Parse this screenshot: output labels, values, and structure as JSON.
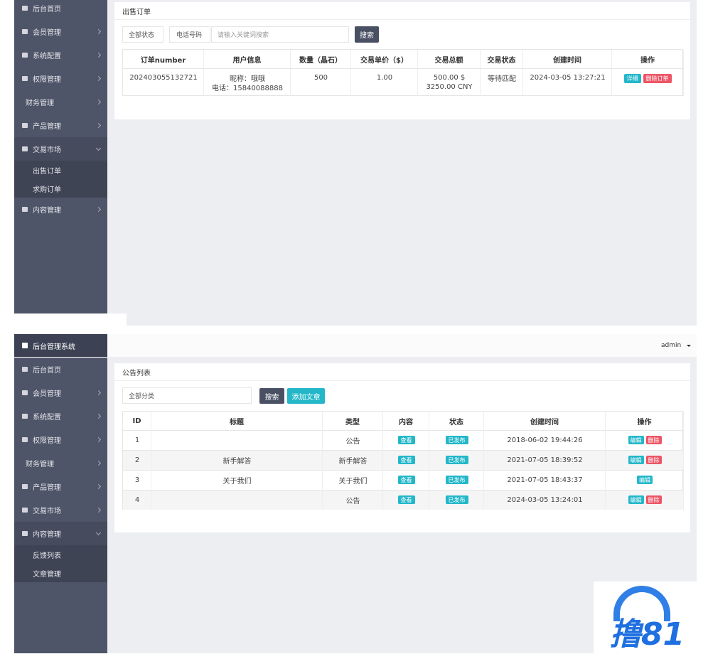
{
  "order_screen": {
    "sidebar": [
      {
        "label": "后台首页"
      },
      {
        "label": "会员管理"
      },
      {
        "label": "系统配置"
      },
      {
        "label": "权限管理"
      },
      {
        "label": "财务管理"
      },
      {
        "label": "产品管理"
      },
      {
        "label": "交易市场",
        "children": [
          "出售订单",
          "求购订单"
        ]
      },
      {
        "label": "内容管理"
      }
    ],
    "panel_title": "出售订单",
    "filters": {
      "status_select": "全部状态",
      "field_select": "电话号码",
      "keyword_placeholder": "请输入关键词搜索",
      "search_button": "搜索"
    },
    "table": {
      "headers": [
        "订单number",
        "用户信息",
        "数量（晶石）",
        "交易单价（$）",
        "交易总额",
        "交易状态",
        "创建时间",
        "操作"
      ],
      "rows": [
        [
          "202403055132721",
          [
            "昵称：哦哦",
            "电话：15840088888"
          ],
          "500",
          "1.00",
          [
            "500.00 $",
            "3250.00 CNY"
          ],
          "等待匹配",
          "2024-03-05 13:27:21",
          [
            "详细",
            "删除订单"
          ]
        ]
      ]
    }
  },
  "article_screen": {
    "brand": "后台管理系统",
    "user": "admin",
    "sidebar": [
      {
        "label": "后台首页"
      },
      {
        "label": "会员管理"
      },
      {
        "label": "系统配置"
      },
      {
        "label": "权限管理"
      },
      {
        "label": "财务管理"
      },
      {
        "label": "产品管理"
      },
      {
        "label": "交易市场"
      },
      {
        "label": "内容管理",
        "children": [
          "反馈列表",
          "文章管理"
        ]
      }
    ],
    "panel_title": "公告列表",
    "filters": {
      "category_select": "全部分类",
      "search_button": "搜索",
      "add_button": "添加文章"
    },
    "table": {
      "headers": [
        "ID",
        "标题",
        "类型",
        "内容",
        "状态",
        "创建时间",
        "操作"
      ],
      "rows": [
        {
          "id": "1",
          "type": "公告",
          "content": "查看",
          "status": "已发布",
          "created": "2018-06-02 19:44:26",
          "actions": [
            "编辑",
            "删除"
          ]
        },
        {
          "id": "2",
          "title": "新手解答",
          "type": "新手解答",
          "content": "查看",
          "status": "已发布",
          "created": "2021-07-05 18:39:52",
          "actions": [
            "编辑",
            "删除"
          ]
        },
        {
          "id": "3",
          "title": "关于我们",
          "type": "关于我们",
          "content": "查看",
          "status": "已发布",
          "created": "2021-07-05 18:43:37",
          "actions": [
            "编辑"
          ]
        },
        {
          "id": "4",
          "type": "公告",
          "content": "查看",
          "status": "已发布",
          "created": "2024-03-05 13:24:01",
          "actions": [
            "编辑",
            "删除"
          ]
        }
      ]
    }
  },
  "watermark": "撸81"
}
